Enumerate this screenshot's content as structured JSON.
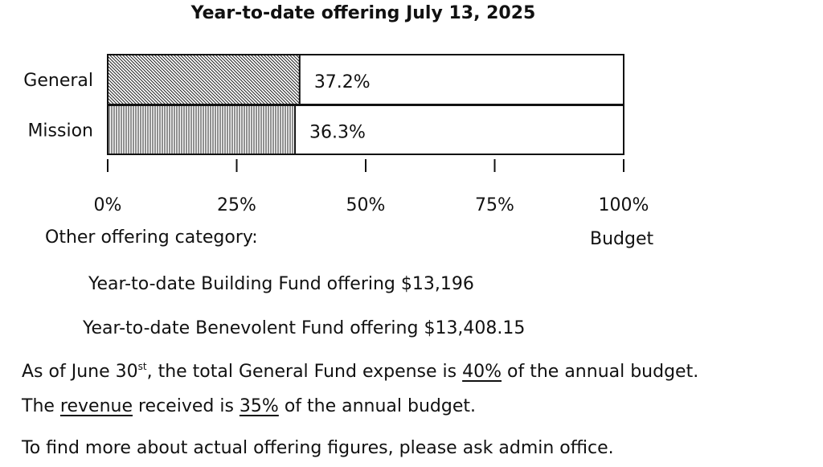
{
  "chart_data": {
    "type": "bar",
    "orientation": "horizontal",
    "title": "Year-to-date offering July 13, 2025",
    "categories": [
      "General",
      "Mission"
    ],
    "values": [
      37.2,
      36.3
    ],
    "value_labels": [
      "37.2%",
      "36.3%"
    ],
    "xlim": [
      0,
      100
    ],
    "xticks": [
      "0%",
      "25%",
      "50%",
      "75%",
      "100%"
    ],
    "xlabel": "Budget",
    "grid": false,
    "patterns": [
      "diagonal-hatch",
      "vertical-hatch"
    ]
  },
  "other": {
    "heading": "Other offering category:",
    "building": "Year-to-date Building Fund offering $13,196",
    "benevolent": "Year-to-date Benevolent Fund offering $13,408.15"
  },
  "notes": {
    "expense_pre": "As of June 30",
    "expense_sup": "st",
    "expense_mid": ", the total General Fund expense is ",
    "expense_pct": "40%",
    "expense_post": " of the annual budget.",
    "revenue_pre": "The ",
    "revenue_word": "revenue",
    "revenue_mid": " received is ",
    "revenue_pct": "35%",
    "revenue_post": " of the annual budget.",
    "contact": "To find more about actual offering figures, please ask admin office."
  }
}
